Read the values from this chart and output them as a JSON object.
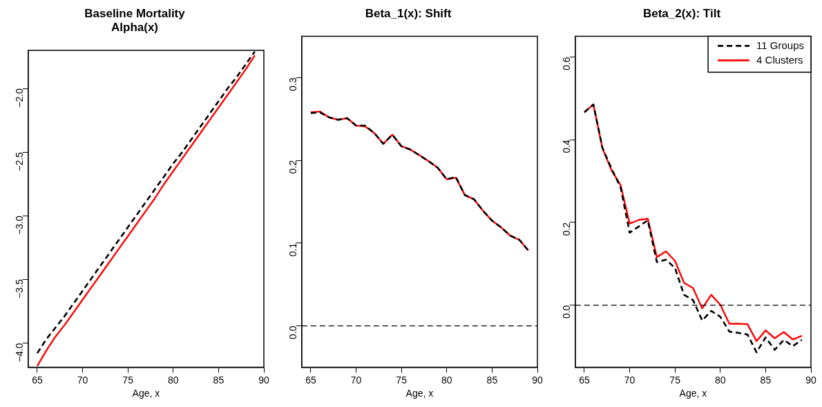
{
  "chart_data": [
    {
      "type": "line",
      "title": "Baseline Mortality\nAlpha(x)",
      "xlabel": "Age, x",
      "xlim": [
        64,
        90
      ],
      "xticks": [
        65,
        70,
        75,
        80,
        85,
        90
      ],
      "ylim": [
        -4.19,
        -1.7
      ],
      "yticks": [
        {
          "value": -4,
          "label": "−4.0"
        },
        {
          "value": -3.5,
          "label": "−3.5"
        },
        {
          "value": -3,
          "label": "−3.0"
        },
        {
          "value": -2.5,
          "label": "−2.5"
        },
        {
          "value": -2,
          "label": "−2.0"
        }
      ],
      "x": [
        65,
        66,
        67,
        68,
        69,
        70,
        71,
        72,
        73,
        74,
        75,
        76,
        77,
        78,
        79,
        80,
        81,
        82,
        83,
        84,
        85,
        86,
        87,
        88,
        89
      ],
      "series": [
        {
          "color": "#000000",
          "line_style": "dashed",
          "values": [
            -4.08,
            -3.97,
            -3.88,
            -3.79,
            -3.69,
            -3.59,
            -3.49,
            -3.39,
            -3.29,
            -3.19,
            -3.09,
            -2.99,
            -2.89,
            -2.79,
            -2.69,
            -2.59,
            -2.5,
            -2.4,
            -2.3,
            -2.2,
            -2.1,
            -2.0,
            -1.91,
            -1.81,
            -1.71
          ]
        },
        {
          "color": "#ff0000",
          "line_style": "solid",
          "values": [
            -4.18,
            -4.06,
            -3.95,
            -3.86,
            -3.76,
            -3.66,
            -3.56,
            -3.46,
            -3.36,
            -3.26,
            -3.16,
            -3.06,
            -2.96,
            -2.86,
            -2.75,
            -2.65,
            -2.55,
            -2.45,
            -2.35,
            -2.25,
            -2.15,
            -2.05,
            -1.95,
            -1.85,
            -1.74
          ]
        }
      ]
    },
    {
      "type": "line",
      "title": "Beta_1(x): Shift",
      "xlabel": "Age, x",
      "xlim": [
        64,
        90
      ],
      "xticks": [
        65,
        70,
        75,
        80,
        85,
        90
      ],
      "ylim": [
        -0.05,
        0.35
      ],
      "yticks": [
        {
          "value": 0,
          "label": "0.0"
        },
        {
          "value": 0.1,
          "label": "0.1"
        },
        {
          "value": 0.2,
          "label": "0.2"
        },
        {
          "value": 0.3,
          "label": "0.3"
        }
      ],
      "x": [
        65,
        66,
        67,
        68,
        69,
        70,
        71,
        72,
        73,
        74,
        75,
        76,
        77,
        78,
        79,
        80,
        81,
        82,
        83,
        84,
        85,
        86,
        87,
        88,
        89
      ],
      "ref_lines": [
        {
          "axis": "y",
          "value": 0,
          "color": "#000000",
          "line_style": "dashed"
        }
      ],
      "series": [
        {
          "color": "#000000",
          "line_style": "dashed",
          "values": [
            0.257,
            0.258,
            0.252,
            0.249,
            0.251,
            0.242,
            0.242,
            0.233,
            0.22,
            0.231,
            0.217,
            0.213,
            0.206,
            0.199,
            0.191,
            0.177,
            0.18,
            0.158,
            0.153,
            0.139,
            0.127,
            0.119,
            0.109,
            0.104,
            0.091
          ]
        },
        {
          "color": "#ff0000",
          "line_style": "solid",
          "values": [
            0.258,
            0.259,
            0.252,
            0.249,
            0.251,
            0.242,
            0.241,
            0.233,
            0.22,
            0.231,
            0.217,
            0.213,
            0.206,
            0.199,
            0.191,
            0.177,
            0.179,
            0.158,
            0.153,
            0.139,
            0.127,
            0.119,
            0.109,
            0.104,
            0.091
          ]
        }
      ]
    },
    {
      "type": "line",
      "title": "Beta_2(x): Tilt",
      "xlabel": "Age, x",
      "xlim": [
        64,
        90
      ],
      "xticks": [
        65,
        70,
        75,
        80,
        85,
        90
      ],
      "ylim": [
        -0.15,
        0.65
      ],
      "yticks": [
        {
          "value": 0,
          "label": "0.0"
        },
        {
          "value": 0.2,
          "label": "0.2"
        },
        {
          "value": 0.4,
          "label": "0.4"
        },
        {
          "value": 0.6,
          "label": "0.6"
        }
      ],
      "x": [
        65,
        66,
        67,
        68,
        69,
        70,
        71,
        72,
        73,
        74,
        75,
        76,
        77,
        78,
        79,
        80,
        81,
        82,
        83,
        84,
        85,
        86,
        87,
        88,
        89
      ],
      "ref_lines": [
        {
          "axis": "y",
          "value": 0,
          "color": "#000000",
          "line_style": "dashed"
        }
      ],
      "legend": "top right",
      "series": [
        {
          "name": "11 Groups",
          "color": "#000000",
          "line_style": "dashed",
          "values": [
            0.466,
            0.485,
            0.38,
            0.33,
            0.285,
            0.175,
            0.19,
            0.205,
            0.104,
            0.11,
            0.09,
            0.025,
            0.012,
            -0.037,
            -0.014,
            -0.028,
            -0.064,
            -0.067,
            -0.071,
            -0.114,
            -0.078,
            -0.108,
            -0.084,
            -0.099,
            -0.084
          ]
        },
        {
          "name": "4 Clusters",
          "color": "#ff0000",
          "line_style": "solid",
          "values": [
            0.466,
            0.485,
            0.379,
            0.326,
            0.29,
            0.197,
            0.206,
            0.209,
            0.116,
            0.13,
            0.107,
            0.054,
            0.041,
            -0.008,
            0.025,
            0.001,
            -0.045,
            -0.045,
            -0.046,
            -0.087,
            -0.061,
            -0.08,
            -0.065,
            -0.083,
            -0.074
          ]
        }
      ]
    }
  ]
}
